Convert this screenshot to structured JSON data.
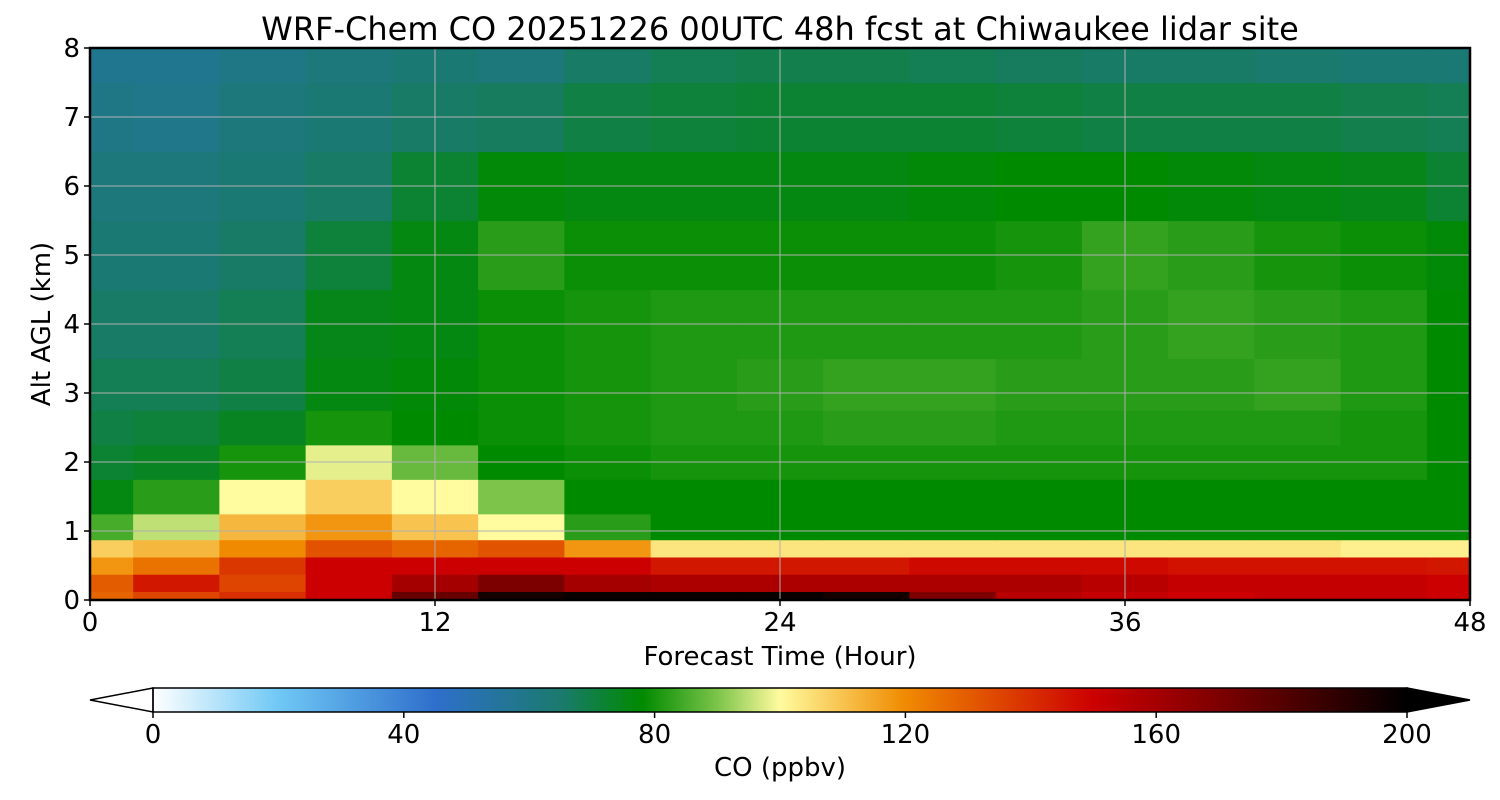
{
  "chart_data": {
    "type": "heatmap",
    "title": "WRF-Chem CO  20251226 00UTC 48h fcst at Chiwaukee lidar site",
    "xlabel": "Forecast Time (Hour)",
    "ylabel": "Alt AGL (km)",
    "xlim": [
      0,
      48
    ],
    "ylim": [
      0,
      8
    ],
    "xticks": [
      "0",
      "12",
      "24",
      "36",
      "48"
    ],
    "yticks": [
      "0",
      "1",
      "2",
      "3",
      "4",
      "5",
      "6",
      "7",
      "8"
    ],
    "grid": true,
    "colorbar": {
      "label": "CO  (ppbv)",
      "min": 0,
      "max": 200,
      "ticks": [
        "0",
        "40",
        "80",
        "120",
        "160",
        "200"
      ],
      "extend": "both",
      "colormap_stops": [
        {
          "value": 0,
          "color": "#ffffff"
        },
        {
          "value": 20,
          "color": "#6fc8f5"
        },
        {
          "value": 45,
          "color": "#2f6fcc"
        },
        {
          "value": 65,
          "color": "#1a7a6e"
        },
        {
          "value": 78,
          "color": "#008a00"
        },
        {
          "value": 90,
          "color": "#7cc44a"
        },
        {
          "value": 100,
          "color": "#fffb9e"
        },
        {
          "value": 120,
          "color": "#f08a00"
        },
        {
          "value": 150,
          "color": "#cc0000"
        },
        {
          "value": 180,
          "color": "#550000"
        },
        {
          "value": 200,
          "color": "#000000"
        }
      ]
    },
    "hours": [
      0,
      3,
      6,
      9,
      12,
      15,
      18,
      21,
      24,
      27,
      30,
      33,
      36,
      39,
      42,
      45,
      48
    ],
    "altitudes_km": [
      0,
      0.25,
      0.5,
      0.75,
      1,
      1.5,
      2,
      2.5,
      3,
      4,
      5,
      6,
      7,
      8
    ],
    "values_ppbv": [
      [
        128,
        135,
        140,
        150,
        175,
        195,
        198,
        198,
        198,
        195,
        170,
        155,
        152,
        150,
        152,
        152,
        150
      ],
      [
        130,
        145,
        135,
        150,
        160,
        170,
        160,
        158,
        158,
        158,
        158,
        158,
        155,
        152,
        152,
        152,
        150
      ],
      [
        118,
        125,
        138,
        150,
        150,
        150,
        150,
        145,
        145,
        145,
        148,
        148,
        148,
        146,
        146,
        146,
        145
      ],
      [
        108,
        112,
        120,
        132,
        128,
        132,
        118,
        104,
        104,
        104,
        104,
        104,
        104,
        104,
        104,
        102,
        102
      ],
      [
        85,
        95,
        112,
        118,
        110,
        100,
        82,
        78,
        78,
        78,
        78,
        78,
        78,
        78,
        78,
        78,
        78
      ],
      [
        76,
        82,
        100,
        108,
        100,
        90,
        78,
        78,
        78,
        78,
        78,
        78,
        78,
        78,
        78,
        78,
        78
      ],
      [
        72,
        74,
        80,
        98,
        88,
        78,
        79,
        80,
        80,
        80,
        80,
        80,
        80,
        80,
        80,
        80,
        78
      ],
      [
        70,
        71,
        74,
        80,
        78,
        79,
        80,
        81,
        81,
        82,
        82,
        81,
        81,
        81,
        81,
        80,
        78
      ],
      [
        68,
        68,
        70,
        76,
        77,
        79,
        80,
        81,
        82,
        83,
        83,
        82,
        82,
        82,
        83,
        81,
        78
      ],
      [
        66,
        66,
        68,
        75,
        76,
        79,
        80,
        81,
        81,
        81,
        81,
        81,
        82,
        83,
        82,
        81,
        78
      ],
      [
        64,
        64,
        66,
        71,
        76,
        82,
        79,
        79,
        79,
        79,
        79,
        80,
        83,
        82,
        80,
        79,
        77
      ],
      [
        62,
        62,
        64,
        66,
        72,
        77,
        76,
        76,
        76,
        76,
        77,
        78,
        78,
        77,
        76,
        75,
        72
      ],
      [
        60,
        59,
        62,
        64,
        66,
        67,
        70,
        71,
        72,
        72,
        72,
        71,
        70,
        70,
        70,
        69,
        68
      ],
      [
        58,
        58,
        60,
        62,
        64,
        62,
        66,
        68,
        69,
        69,
        68,
        67,
        66,
        66,
        65,
        64,
        64
      ]
    ]
  }
}
